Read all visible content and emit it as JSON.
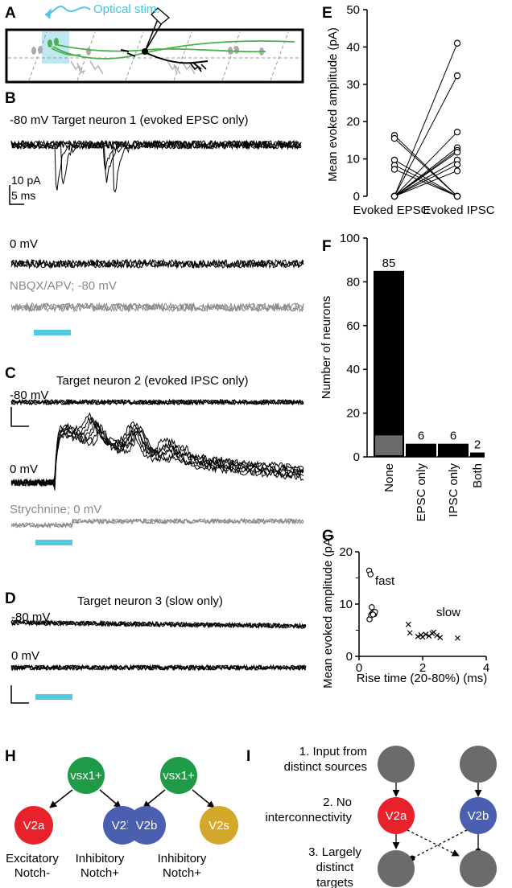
{
  "colors": {
    "trace": "#000000",
    "drug_trace": "#8a8a8a",
    "stim_bar": "#4fc9dc",
    "axon": "#4cb04c",
    "V2a": "#e8212a",
    "V2b": "#4a5fb0",
    "V2s": "#d4a82a",
    "vsx1": "#1f9a46",
    "target_cell": "#6b6b6b"
  },
  "panel_labels": {
    "A": "A",
    "B": "B",
    "C": "C",
    "D": "D",
    "E": "E",
    "F": "F",
    "G": "G",
    "H": "H",
    "I": "I"
  },
  "panelA": {
    "stim_label": "Optical stim."
  },
  "panelB": {
    "header": "-80 mV Target neuron 1 (evoked EPSC only)",
    "scale_current": "10 pA",
    "scale_time": "5 ms",
    "label_0mv": "0 mV",
    "drug_label": "NBQX/APV; -80 mV"
  },
  "panelC": {
    "header": "Target neuron 2 (evoked IPSC only)",
    "label_80mv": "-80 mV",
    "label_0mv": "0 mV",
    "drug_label": "Strychnine; 0 mV"
  },
  "panelD": {
    "header": "Target neuron 3 (slow only)",
    "label_80mv": "-80 mV",
    "label_0mv": "0 mV"
  },
  "chart_data": [
    {
      "panel": "E",
      "type": "line",
      "categories": [
        "Evoked EPSC",
        "Evoked IPSC"
      ],
      "ylabel": "Mean evoked amplitude (pA)",
      "ylim": [
        0,
        50
      ],
      "yticks": [
        0,
        10,
        20,
        30,
        40,
        50
      ],
      "pairs": [
        [
          16.3,
          0
        ],
        [
          15.5,
          0
        ],
        [
          9.7,
          0
        ],
        [
          8.3,
          0
        ],
        [
          7.2,
          0
        ],
        [
          0,
          41
        ],
        [
          0,
          32.3
        ],
        [
          0,
          17.2
        ],
        [
          0,
          13
        ],
        [
          0,
          12.3
        ],
        [
          0,
          11.8
        ],
        [
          0,
          9.7
        ],
        [
          0,
          8.5
        ],
        [
          0,
          6.8
        ]
      ]
    },
    {
      "panel": "F",
      "type": "bar",
      "categories": [
        "None",
        "EPSC only",
        "IPSC only",
        "Both"
      ],
      "values": [
        85,
        6,
        6,
        2
      ],
      "value_labels": [
        "85",
        "6",
        "6",
        "2"
      ],
      "subset_none_slow": 10,
      "ylabel": "Number of neurons",
      "ylim": [
        0,
        100
      ],
      "yticks": [
        0,
        20,
        40,
        60,
        80,
        100
      ]
    },
    {
      "panel": "G",
      "type": "scatter",
      "xlabel": "Rise time (20-80%) (ms)",
      "ylabel": "Mean evoked amplitude (pA)",
      "xlim": [
        0,
        4
      ],
      "ylim": [
        0,
        20
      ],
      "xticks": [
        0,
        2,
        4
      ],
      "yticks": [
        0,
        10,
        20
      ],
      "series": [
        {
          "name": "fast",
          "marker": "circle",
          "x": [
            0.32,
            0.36,
            0.33,
            0.38,
            0.42,
            0.45,
            0.4,
            0.48,
            0.5,
            0.44
          ],
          "y": [
            16.4,
            15.7,
            7.1,
            7.9,
            8.2,
            8.4,
            9.4,
            8.1,
            8.5,
            8.0
          ]
        },
        {
          "name": "slow",
          "marker": "cross",
          "x": [
            1.55,
            1.6,
            1.85,
            1.95,
            2.0,
            2.1,
            2.2,
            2.3,
            2.35,
            2.45,
            2.55,
            3.1
          ],
          "y": [
            6.1,
            4.5,
            3.8,
            4.1,
            3.7,
            4.2,
            3.9,
            4.4,
            4.6,
            4.0,
            3.6,
            3.5
          ]
        }
      ]
    }
  ],
  "panelH": {
    "tree1": {
      "parent": "vsx1+",
      "left": "V2a",
      "right": "V2b",
      "label_left_1": "Excitatory",
      "label_left_2": "Notch-",
      "label_right_1": "Inhibitory",
      "label_right_2": "Notch+"
    },
    "tree2": {
      "parent": "vsx1+",
      "left": "V2b",
      "right": "V2s",
      "label_1": "Inhibitory",
      "label_2": "Notch+"
    }
  },
  "panelI": {
    "step1_l1": "1. Input from",
    "step1_l2": "distinct sources",
    "step2_l1": "2. No",
    "step2_l2": "interconnectivity",
    "step3_l1": "3. Largely",
    "step3_l2": "distinct",
    "step3_l3": "targets",
    "cell_left": "V2a",
    "cell_right": "V2b"
  }
}
